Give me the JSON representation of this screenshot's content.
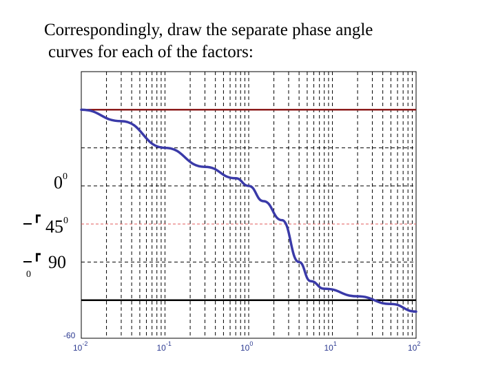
{
  "title": {
    "line1": "Correspondingly, draw the separate phase angle",
    "line2": "curves for each of  the factors:"
  },
  "labels": {
    "zero_deg": "0",
    "zero_deg_sup": "0",
    "minus45": "45",
    "minus45_sup": "0",
    "minus90": "90",
    "minus90_sub": "0"
  },
  "colors": {
    "curve": "#3a3aa8",
    "zero_line": "#8b1a1a",
    "dashed_45": "#e05a5a",
    "axis_line_90": "#000000",
    "grid": "#000000",
    "tick_label": "#2b3990"
  },
  "chart_data": {
    "type": "line",
    "x_scale": "log",
    "xlim": [
      0.01,
      100
    ],
    "ylim": [
      -60,
      10
    ],
    "y_bottom_label": "-60",
    "x_tick_labels": [
      {
        "base": "10",
        "exp": "-2",
        "value": 0.01
      },
      {
        "base": "10",
        "exp": "-1",
        "value": 0.1
      },
      {
        "base": "10",
        "exp": "0",
        "value": 1
      },
      {
        "base": "10",
        "exp": "1",
        "value": 10
      },
      {
        "base": "10",
        "exp": "2",
        "value": 100
      }
    ],
    "reference_lines": [
      {
        "y": 0,
        "color": "#8b1a1a",
        "style": "solid"
      },
      {
        "y": -30,
        "color": "#e05a5a",
        "style": "dashed"
      },
      {
        "y": -50,
        "color": "#000000",
        "style": "solid"
      }
    ],
    "series": [
      {
        "x": [
          0.01,
          0.03,
          0.1,
          0.3,
          0.7,
          1.0,
          1.5,
          2.5,
          4.0,
          5.5,
          8.0,
          20,
          50,
          100
        ],
        "y": [
          0,
          -3,
          -10,
          -15,
          -18,
          -20,
          -24,
          -29,
          -40,
          -45,
          -47,
          -49,
          -51,
          -53
        ]
      }
    ]
  }
}
